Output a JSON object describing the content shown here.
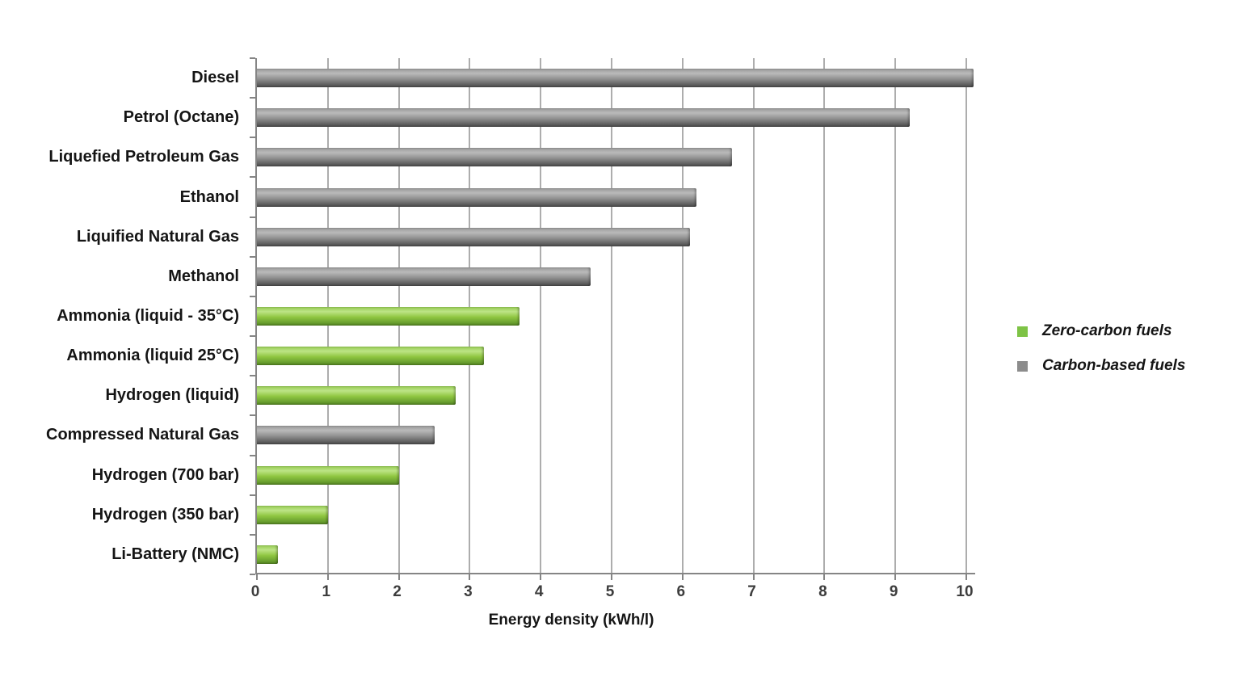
{
  "chart_data": {
    "type": "bar",
    "orientation": "horizontal",
    "xlabel": "Energy density (kWh/l)",
    "xlim": [
      0,
      10
    ],
    "xtick_step": 1,
    "grid": "vertical",
    "legend_position": "right",
    "categories": [
      "Diesel",
      "Petrol (Octane)",
      "Liquefied Petroleum Gas",
      "Ethanol",
      "Liquified Natural Gas",
      "Methanol",
      "Ammonia (liquid - 35°C)",
      "Ammonia (liquid 25°C)",
      "Hydrogen (liquid)",
      "Compressed Natural Gas",
      "Hydrogen (700 bar)",
      "Hydrogen (350 bar)",
      "Li-Battery (NMC)"
    ],
    "values": [
      10.1,
      9.2,
      6.7,
      6.2,
      6.1,
      4.7,
      3.7,
      3.2,
      2.8,
      2.5,
      2.0,
      1.0,
      0.3
    ],
    "groups": [
      "carbon",
      "carbon",
      "carbon",
      "carbon",
      "carbon",
      "carbon",
      "zero",
      "zero",
      "zero",
      "carbon",
      "zero",
      "zero",
      "zero"
    ],
    "legend": [
      {
        "label": "Zero-carbon fuels",
        "group": "zero",
        "color": "#7EC346"
      },
      {
        "label": "Carbon-based fuels",
        "group": "carbon",
        "color": "#8C8C8C"
      }
    ]
  }
}
